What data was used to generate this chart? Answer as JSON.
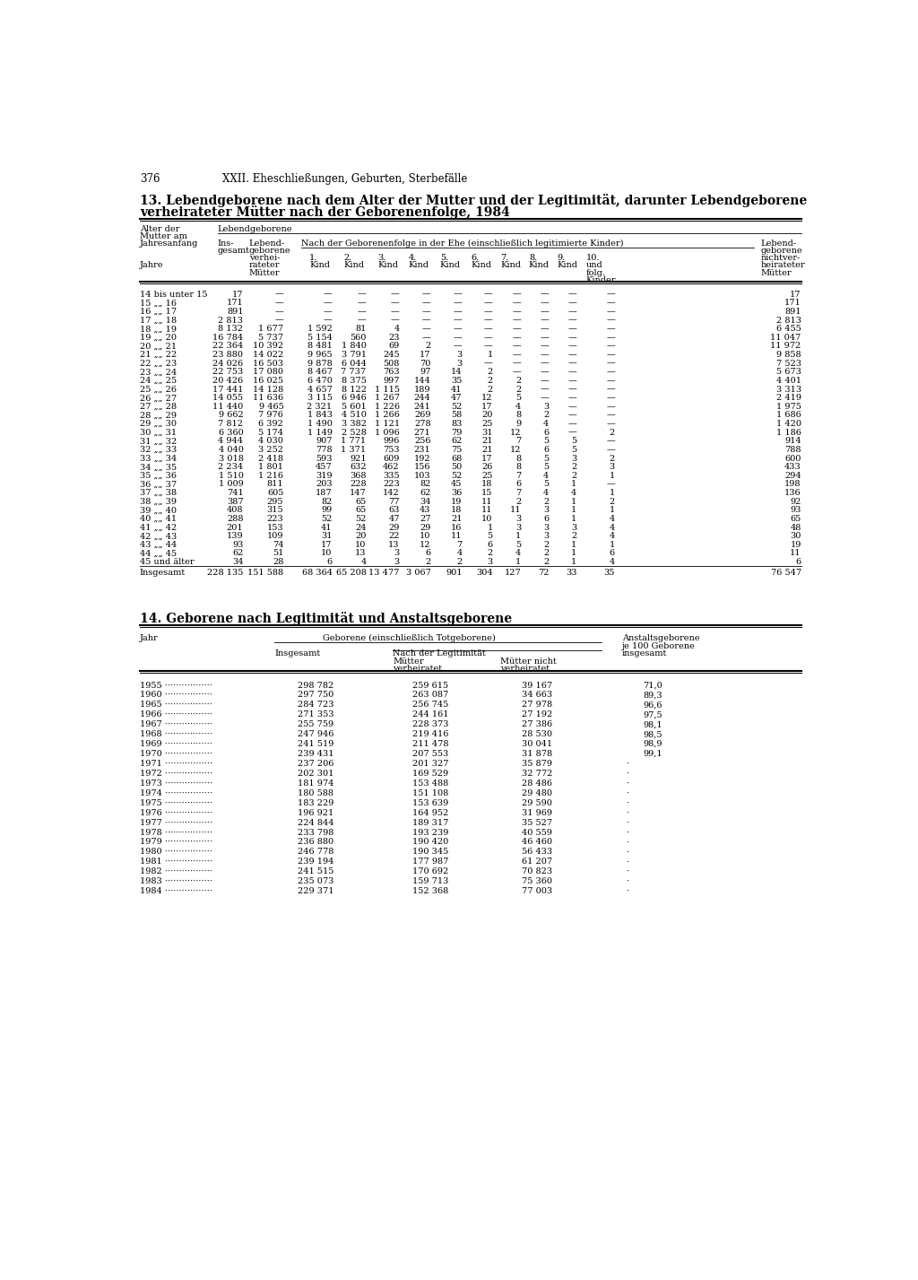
{
  "page_number": "376",
  "page_header": "XXII. Eheschließungen, Geburten, Sterbefälle",
  "title13": "13. Lebendgeborene nach dem Alter der Mutter und der Legitimität, darunter Lebendgeborene",
  "title13b": "verheirateter Mütter nach der Geborenenfolge, 1984",
  "title14": "14. Geborene nach Legitimität und Anstaltsgeborene",
  "table13_rows": [
    [
      "14 bis unter 15",
      "17",
      "—",
      "—",
      "—",
      "—",
      "—",
      "—",
      "—",
      "—",
      "—",
      "—",
      "—",
      "17"
    ],
    [
      "15 „„ 16",
      "171",
      "—",
      "—",
      "—",
      "—",
      "—",
      "—",
      "—",
      "—",
      "—",
      "—",
      "—",
      "171"
    ],
    [
      "16 „„ 17",
      "891",
      "—",
      "—",
      "—",
      "—",
      "—",
      "—",
      "—",
      "—",
      "—",
      "—",
      "—",
      "891"
    ],
    [
      "17 „„ 18",
      "2 813",
      "—",
      "—",
      "—",
      "—",
      "—",
      "—",
      "—",
      "—",
      "—",
      "—",
      "—",
      "2 813"
    ],
    [
      "18 „„ 19",
      "8 132",
      "1 677",
      "1 592",
      "81",
      "4",
      "—",
      "—",
      "—",
      "—",
      "—",
      "—",
      "—",
      "6 455"
    ],
    [
      "19 „„ 20",
      "16 784",
      "5 737",
      "5 154",
      "560",
      "23",
      "—",
      "—",
      "—",
      "—",
      "—",
      "—",
      "—",
      "11 047"
    ],
    [
      "20 „„ 21",
      "22 364",
      "10 392",
      "8 481",
      "1 840",
      "69",
      "2",
      "—",
      "—",
      "—",
      "—",
      "—",
      "—",
      "11 972"
    ],
    [
      "21 „„ 22",
      "23 880",
      "14 022",
      "9 965",
      "3 791",
      "245",
      "17",
      "3",
      "1",
      "—",
      "—",
      "—",
      "—",
      "9 858"
    ],
    [
      "22 „„ 23",
      "24 026",
      "16 503",
      "9 878",
      "6 044",
      "508",
      "70",
      "3",
      "—",
      "—",
      "—",
      "—",
      "—",
      "7 523"
    ],
    [
      "23 „„ 24",
      "22 753",
      "17 080",
      "8 467",
      "7 737",
      "763",
      "97",
      "14",
      "2",
      "—",
      "—",
      "—",
      "—",
      "5 673"
    ],
    [
      "24 „„ 25",
      "20 426",
      "16 025",
      "6 470",
      "8 375",
      "997",
      "144",
      "35",
      "2",
      "2",
      "—",
      "—",
      "—",
      "4 401"
    ],
    [
      "25 „„ 26",
      "17 441",
      "14 128",
      "4 657",
      "8 122",
      "1 115",
      "189",
      "41",
      "2",
      "2",
      "—",
      "—",
      "—",
      "3 313"
    ],
    [
      "26 „„ 27",
      "14 055",
      "11 636",
      "3 115",
      "6 946",
      "1 267",
      "244",
      "47",
      "12",
      "5",
      "—",
      "—",
      "—",
      "2 419"
    ],
    [
      "27 „„ 28",
      "11 440",
      "9 465",
      "2 321",
      "5 601",
      "1 226",
      "241",
      "52",
      "17",
      "4",
      "3",
      "—",
      "—",
      "1 975"
    ],
    [
      "28 „„ 29",
      "9 662",
      "7 976",
      "1 843",
      "4 510",
      "1 266",
      "269",
      "58",
      "20",
      "8",
      "2",
      "—",
      "—",
      "1 686"
    ],
    [
      "29 „„ 30",
      "7 812",
      "6 392",
      "1 490",
      "3 382",
      "1 121",
      "278",
      "83",
      "25",
      "9",
      "4",
      "—",
      "—",
      "1 420"
    ],
    [
      "30 „„ 31",
      "6 360",
      "5 174",
      "1 149",
      "2 528",
      "1 096",
      "271",
      "79",
      "31",
      "12",
      "6",
      "—",
      "2",
      "1 186"
    ],
    [
      "31 „„ 32",
      "4 944",
      "4 030",
      "907",
      "1 771",
      "996",
      "256",
      "62",
      "21",
      "7",
      "5",
      "5",
      "—",
      "914"
    ],
    [
      "32 „„ 33",
      "4 040",
      "3 252",
      "778",
      "1 371",
      "753",
      "231",
      "75",
      "21",
      "12",
      "6",
      "5",
      "—",
      "788"
    ],
    [
      "33 „„ 34",
      "3 018",
      "2 418",
      "593",
      "921",
      "609",
      "192",
      "68",
      "17",
      "8",
      "5",
      "3",
      "2",
      "600"
    ],
    [
      "34 „„ 35",
      "2 234",
      "1 801",
      "457",
      "632",
      "462",
      "156",
      "50",
      "26",
      "8",
      "5",
      "2",
      "3",
      "433"
    ],
    [
      "35 „„ 36",
      "1 510",
      "1 216",
      "319",
      "368",
      "335",
      "103",
      "52",
      "25",
      "7",
      "4",
      "2",
      "1",
      "294"
    ],
    [
      "36 „„ 37",
      "1 009",
      "811",
      "203",
      "228",
      "223",
      "82",
      "45",
      "18",
      "6",
      "5",
      "1",
      "—",
      "198"
    ],
    [
      "37 „„ 38",
      "741",
      "605",
      "187",
      "147",
      "142",
      "62",
      "36",
      "15",
      "7",
      "4",
      "4",
      "1",
      "136"
    ],
    [
      "38 „„ 39",
      "387",
      "295",
      "82",
      "65",
      "77",
      "34",
      "19",
      "11",
      "2",
      "2",
      "1",
      "2",
      "92"
    ],
    [
      "39 „„ 40",
      "408",
      "315",
      "99",
      "65",
      "63",
      "43",
      "18",
      "11",
      "11",
      "3",
      "1",
      "1",
      "93"
    ],
    [
      "40 „„ 41",
      "288",
      "223",
      "52",
      "52",
      "47",
      "27",
      "21",
      "10",
      "3",
      "6",
      "1",
      "4",
      "65"
    ],
    [
      "41 „„ 42",
      "201",
      "153",
      "41",
      "24",
      "29",
      "29",
      "16",
      "1",
      "3",
      "3",
      "3",
      "4",
      "48"
    ],
    [
      "42 „„ 43",
      "139",
      "109",
      "31",
      "20",
      "22",
      "10",
      "11",
      "5",
      "1",
      "3",
      "2",
      "4",
      "30"
    ],
    [
      "43 „„ 44",
      "93",
      "74",
      "17",
      "10",
      "13",
      "12",
      "7",
      "6",
      "5",
      "2",
      "1",
      "1",
      "19"
    ],
    [
      "44 „„ 45",
      "62",
      "51",
      "10",
      "13",
      "3",
      "6",
      "4",
      "2",
      "4",
      "2",
      "1",
      "6",
      "11"
    ],
    [
      "45 und älter",
      "34",
      "28",
      "6",
      "4",
      "3",
      "2",
      "2",
      "3",
      "1",
      "2",
      "1",
      "4",
      "6"
    ]
  ],
  "table13_total": [
    "Insgesamt",
    "228 135",
    "151 588",
    "68 364",
    "65 208",
    "13 477",
    "3 067",
    "901",
    "304",
    "127",
    "72",
    "33",
    "35",
    "76 547"
  ],
  "table14_rows": [
    [
      "1955",
      "298 782",
      "259 615",
      "39 167",
      "71,0"
    ],
    [
      "1960",
      "297 750",
      "263 087",
      "34 663",
      "89,3"
    ],
    [
      "1965",
      "284 723",
      "256 745",
      "27 978",
      "96,6"
    ],
    [
      "1966",
      "271 353",
      "244 161",
      "27 192",
      "97,5"
    ],
    [
      "1967",
      "255 759",
      "228 373",
      "27 386",
      "98,1"
    ],
    [
      "1968",
      "247 946",
      "219 416",
      "28 530",
      "98,5"
    ],
    [
      "1969",
      "241 519",
      "211 478",
      "30 041",
      "98,9"
    ],
    [
      "1970",
      "239 431",
      "207 553",
      "31 878",
      "99,1"
    ],
    [
      "1971",
      "237 206",
      "201 327",
      "35 879",
      "·"
    ],
    [
      "1972",
      "202 301",
      "169 529",
      "32 772",
      "·"
    ],
    [
      "1973",
      "181 974",
      "153 488",
      "28 486",
      "·"
    ],
    [
      "1974",
      "180 588",
      "151 108",
      "29 480",
      "·"
    ],
    [
      "1975",
      "183 229",
      "153 639",
      "29 590",
      "·"
    ],
    [
      "1976",
      "196 921",
      "164 952",
      "31 969",
      "·"
    ],
    [
      "1977",
      "224 844",
      "189 317",
      "35 527",
      "·"
    ],
    [
      "1978",
      "233 798",
      "193 239",
      "40 559",
      "·"
    ],
    [
      "1979",
      "236 880",
      "190 420",
      "46 460",
      "·"
    ],
    [
      "1980",
      "246 778",
      "190 345",
      "56 433",
      "·"
    ],
    [
      "1981",
      "239 194",
      "177 987",
      "61 207",
      "·"
    ],
    [
      "1982",
      "241 515",
      "170 692",
      "70 823",
      "·"
    ],
    [
      "1983",
      "235 073",
      "159 713",
      "75 360",
      "·"
    ],
    [
      "1984",
      "229 371",
      "152 368",
      "77 003",
      "·"
    ]
  ]
}
